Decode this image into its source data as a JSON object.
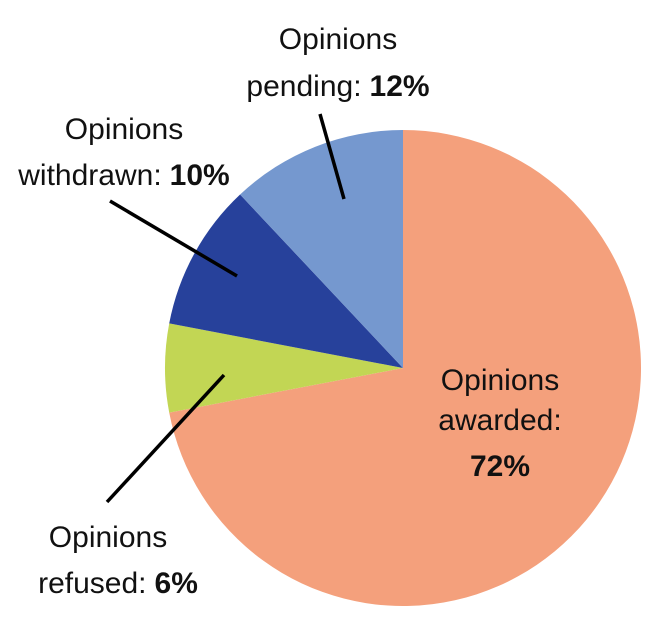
{
  "chart_data": {
    "type": "pie",
    "title": "",
    "start_angle_deg": 0,
    "direction": "clockwise",
    "slices": [
      {
        "name": "Opinions awarded",
        "line1": "Opinions",
        "line2": "awarded:",
        "pct_label": "72%",
        "value": 72,
        "color": "#f4a07c"
      },
      {
        "name": "Opinions refused",
        "line1": "Opinions",
        "line2": "refused:",
        "pct_label": "6%",
        "value": 6,
        "color": "#c2d654"
      },
      {
        "name": "Opinions withdrawn",
        "line1": "Opinions",
        "line2": "withdrawn:",
        "pct_label": "10%",
        "value": 10,
        "color": "#27419b"
      },
      {
        "name": "Opinions pending",
        "line1": "Opinions",
        "line2": "pending:",
        "pct_label": "12%",
        "value": 12,
        "color": "#7598cf"
      }
    ]
  }
}
